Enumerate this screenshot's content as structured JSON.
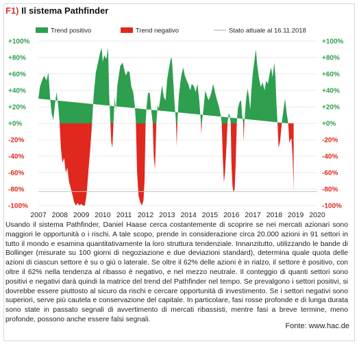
{
  "figure": {
    "number": "F1)",
    "title": "Il sistema Pathfinder",
    "caption": "Usando il sistema Pathfinder, Daniel Haase cerca costantemente di scoprire se nei mercati azionari sono maggiori le opportunità o i rischi. A tale scopo, prende in considerazione circa 20.000 azioni in 91 settori in tutto il mondo e esamina quantitativamente la loro struttura tendenziale. Innanzitutto, utilizzando le bande di Bollinger (misurate su 100 giorni di negoziazione e due deviazioni standard), determina quale quota delle azioni di ciascun settore è su o giù o laterale. Se oltre il 62% delle azioni è in rialzo, il settore è positivo, con oltre il 62% nella tendenza al ribasso è negativo, e nel mezzo neutrale. Il conteggio di quanti settori sono positivi e negativi darà quindi la matrice del trend del Pathfinder nel tempo. Se prevalgono i settori positivi, si dovrebbe essere piuttosto al sicuro da rischi e cercare opportunità di investimento. Se i settori negativi sono superiori, serve più cautela e conservazione del capitale. In particolare, fasi rosse profonde e di lunga durata sono state in passato segnali di avvertimento di mercati ribassisti, mentre fasi a breve termine, meno profonde, possono anche essere falsi segnali.",
    "source": "Fonte: www.hac.de"
  },
  "colors": {
    "positive": "#2e9e4f",
    "negative": "#e0281e",
    "current": "#c4c4c4",
    "title_accent": "#d3382f"
  },
  "chart_data": {
    "type": "area",
    "legend": [
      {
        "label": "Trend positivo",
        "color": "#2e9e4f"
      },
      {
        "label": "Trend negativo",
        "color": "#e0281e"
      },
      {
        "label": "Stato attuale al 16.11.2018",
        "color": "#c4c4c4"
      }
    ],
    "legend_position": "top",
    "y_ticks_left": [
      "+100%",
      "+80%",
      "+60%",
      "+40%",
      "+20%",
      "+0%",
      "-20%",
      "-40%",
      "-60%",
      "-80%",
      "-100%"
    ],
    "y_ticks_right": [
      "+100%",
      "+80%",
      "+60%",
      "+40%",
      "+20%",
      "+0%",
      "-20%",
      "-40%",
      "-60%",
      "-80%",
      "-100%"
    ],
    "x_ticks": [
      "2007",
      "2008",
      "2009",
      "2010",
      "2011",
      "2012",
      "2013",
      "2014",
      "2015",
      "2016",
      "2017",
      "2018",
      "2019",
      "2020"
    ],
    "ylim": [
      -100,
      100
    ],
    "xlim": [
      2007,
      2020
    ],
    "current_state_value": -83,
    "grid": "horizontal",
    "series": [
      {
        "name": "Trend positivo",
        "points": [
          [
            2007.0,
            30
          ],
          [
            2007.08,
            45
          ],
          [
            2007.17,
            52
          ],
          [
            2007.27,
            58
          ],
          [
            2007.38,
            52
          ],
          [
            2007.47,
            62
          ],
          [
            2007.55,
            30
          ],
          [
            2007.62,
            12
          ],
          [
            2007.7,
            4
          ],
          [
            2007.77,
            22
          ],
          [
            2007.85,
            38
          ],
          [
            2007.93,
            20
          ],
          [
            2007.99,
            0
          ],
          [
            2009.5,
            0
          ],
          [
            2009.58,
            35
          ],
          [
            2009.68,
            62
          ],
          [
            2009.78,
            74
          ],
          [
            2009.88,
            86
          ],
          [
            2009.95,
            92
          ],
          [
            2010.0,
            75
          ],
          [
            2010.08,
            83
          ],
          [
            2010.17,
            78
          ],
          [
            2010.25,
            92
          ],
          [
            2010.3,
            35
          ],
          [
            2010.36,
            0
          ],
          [
            2010.5,
            0
          ],
          [
            2010.56,
            32
          ],
          [
            2010.62,
            16
          ],
          [
            2010.68,
            45
          ],
          [
            2010.75,
            58
          ],
          [
            2010.82,
            70
          ],
          [
            2010.88,
            72
          ],
          [
            2010.93,
            74
          ],
          [
            2011.0,
            66
          ],
          [
            2011.08,
            58
          ],
          [
            2011.17,
            64
          ],
          [
            2011.25,
            62
          ],
          [
            2011.33,
            45
          ],
          [
            2011.42,
            38
          ],
          [
            2011.5,
            20
          ],
          [
            2011.55,
            0
          ],
          [
            2012.0,
            0
          ],
          [
            2012.05,
            22
          ],
          [
            2012.12,
            38
          ],
          [
            2012.2,
            36
          ],
          [
            2012.27,
            14
          ],
          [
            2012.33,
            0
          ],
          [
            2012.5,
            0
          ],
          [
            2012.56,
            22
          ],
          [
            2012.62,
            18
          ],
          [
            2012.7,
            34
          ],
          [
            2012.77,
            46
          ],
          [
            2012.85,
            32
          ],
          [
            2012.93,
            28
          ],
          [
            2013.0,
            52
          ],
          [
            2013.08,
            66
          ],
          [
            2013.17,
            78
          ],
          [
            2013.22,
            80
          ],
          [
            2013.28,
            56
          ],
          [
            2013.35,
            24
          ],
          [
            2013.42,
            0
          ],
          [
            2013.48,
            0
          ],
          [
            2013.55,
            34
          ],
          [
            2013.65,
            56
          ],
          [
            2013.75,
            68
          ],
          [
            2013.83,
            58
          ],
          [
            2013.92,
            52
          ],
          [
            2014.0,
            47
          ],
          [
            2014.08,
            40
          ],
          [
            2014.15,
            48
          ],
          [
            2014.25,
            45
          ],
          [
            2014.33,
            38
          ],
          [
            2014.42,
            48
          ],
          [
            2014.5,
            28
          ],
          [
            2014.58,
            0
          ],
          [
            2014.62,
            0
          ],
          [
            2014.7,
            18
          ],
          [
            2014.78,
            40
          ],
          [
            2014.85,
            34
          ],
          [
            2014.93,
            28
          ],
          [
            2015.0,
            32
          ],
          [
            2015.07,
            38
          ],
          [
            2015.15,
            48
          ],
          [
            2015.25,
            36
          ],
          [
            2015.33,
            28
          ],
          [
            2015.42,
            20
          ],
          [
            2015.5,
            10
          ],
          [
            2015.55,
            0
          ],
          [
            2015.82,
            0
          ],
          [
            2015.87,
            12
          ],
          [
            2015.92,
            10
          ],
          [
            2015.97,
            0
          ],
          [
            2016.25,
            0
          ],
          [
            2016.3,
            18
          ],
          [
            2016.38,
            26
          ],
          [
            2016.45,
            28
          ],
          [
            2016.5,
            10
          ],
          [
            2016.55,
            0
          ],
          [
            2016.6,
            0
          ],
          [
            2016.68,
            28
          ],
          [
            2016.75,
            42
          ],
          [
            2016.82,
            32
          ],
          [
            2016.88,
            16
          ],
          [
            2016.93,
            40
          ],
          [
            2017.0,
            62
          ],
          [
            2017.08,
            78
          ],
          [
            2017.14,
            90
          ],
          [
            2017.2,
            72
          ],
          [
            2017.28,
            56
          ],
          [
            2017.37,
            44
          ],
          [
            2017.45,
            50
          ],
          [
            2017.55,
            40
          ],
          [
            2017.62,
            52
          ],
          [
            2017.7,
            48
          ],
          [
            2017.78,
            60
          ],
          [
            2017.85,
            68
          ],
          [
            2017.92,
            56
          ],
          [
            2018.0,
            74
          ],
          [
            2018.05,
            58
          ],
          [
            2018.1,
            24
          ],
          [
            2018.15,
            0
          ],
          [
            2018.35,
            0
          ],
          [
            2018.42,
            15
          ],
          [
            2018.5,
            30
          ],
          [
            2018.58,
            12
          ],
          [
            2018.65,
            0
          ]
        ]
      },
      {
        "name": "Trend negativo",
        "points": [
          [
            2007.99,
            0
          ],
          [
            2008.05,
            -30
          ],
          [
            2008.12,
            -48
          ],
          [
            2008.2,
            -42
          ],
          [
            2008.28,
            -60
          ],
          [
            2008.35,
            -54
          ],
          [
            2008.42,
            -70
          ],
          [
            2008.5,
            -78
          ],
          [
            2008.58,
            -86
          ],
          [
            2008.67,
            -96
          ],
          [
            2008.75,
            -100
          ],
          [
            2008.83,
            -97
          ],
          [
            2008.92,
            -100
          ],
          [
            2009.0,
            -98
          ],
          [
            2009.08,
            -100
          ],
          [
            2009.17,
            -100
          ],
          [
            2009.25,
            -86
          ],
          [
            2009.33,
            -60
          ],
          [
            2009.42,
            -30
          ],
          [
            2009.5,
            0
          ],
          [
            2010.36,
            0
          ],
          [
            2010.4,
            -22
          ],
          [
            2010.45,
            -30
          ],
          [
            2010.5,
            0
          ],
          [
            2011.55,
            0
          ],
          [
            2011.6,
            -58
          ],
          [
            2011.67,
            -88
          ],
          [
            2011.75,
            -96
          ],
          [
            2011.83,
            -100
          ],
          [
            2011.9,
            -94
          ],
          [
            2011.95,
            -70
          ],
          [
            2012.0,
            0
          ],
          [
            2012.33,
            0
          ],
          [
            2012.38,
            -40
          ],
          [
            2012.44,
            -56
          ],
          [
            2012.5,
            0
          ],
          [
            2013.42,
            0
          ],
          [
            2013.45,
            -28
          ],
          [
            2013.48,
            0
          ],
          [
            2014.58,
            0
          ],
          [
            2014.6,
            -14
          ],
          [
            2014.62,
            0
          ],
          [
            2015.55,
            0
          ],
          [
            2015.6,
            -42
          ],
          [
            2015.65,
            -72
          ],
          [
            2015.7,
            -60
          ],
          [
            2015.75,
            -38
          ],
          [
            2015.82,
            0
          ],
          [
            2015.97,
            0
          ],
          [
            2016.0,
            -48
          ],
          [
            2016.05,
            -76
          ],
          [
            2016.1,
            -84
          ],
          [
            2016.15,
            -80
          ],
          [
            2016.2,
            -50
          ],
          [
            2016.25,
            0
          ],
          [
            2016.55,
            0
          ],
          [
            2016.57,
            -22
          ],
          [
            2016.6,
            0
          ],
          [
            2018.15,
            0
          ],
          [
            2018.2,
            -30
          ],
          [
            2018.27,
            -22
          ],
          [
            2018.35,
            0
          ],
          [
            2018.65,
            0
          ],
          [
            2018.7,
            -24
          ],
          [
            2018.75,
            -20
          ],
          [
            2018.8,
            -18
          ],
          [
            2018.85,
            -40
          ],
          [
            2018.88,
            -60
          ],
          [
            2018.9,
            -83
          ],
          [
            2018.9,
            0
          ]
        ]
      }
    ]
  }
}
